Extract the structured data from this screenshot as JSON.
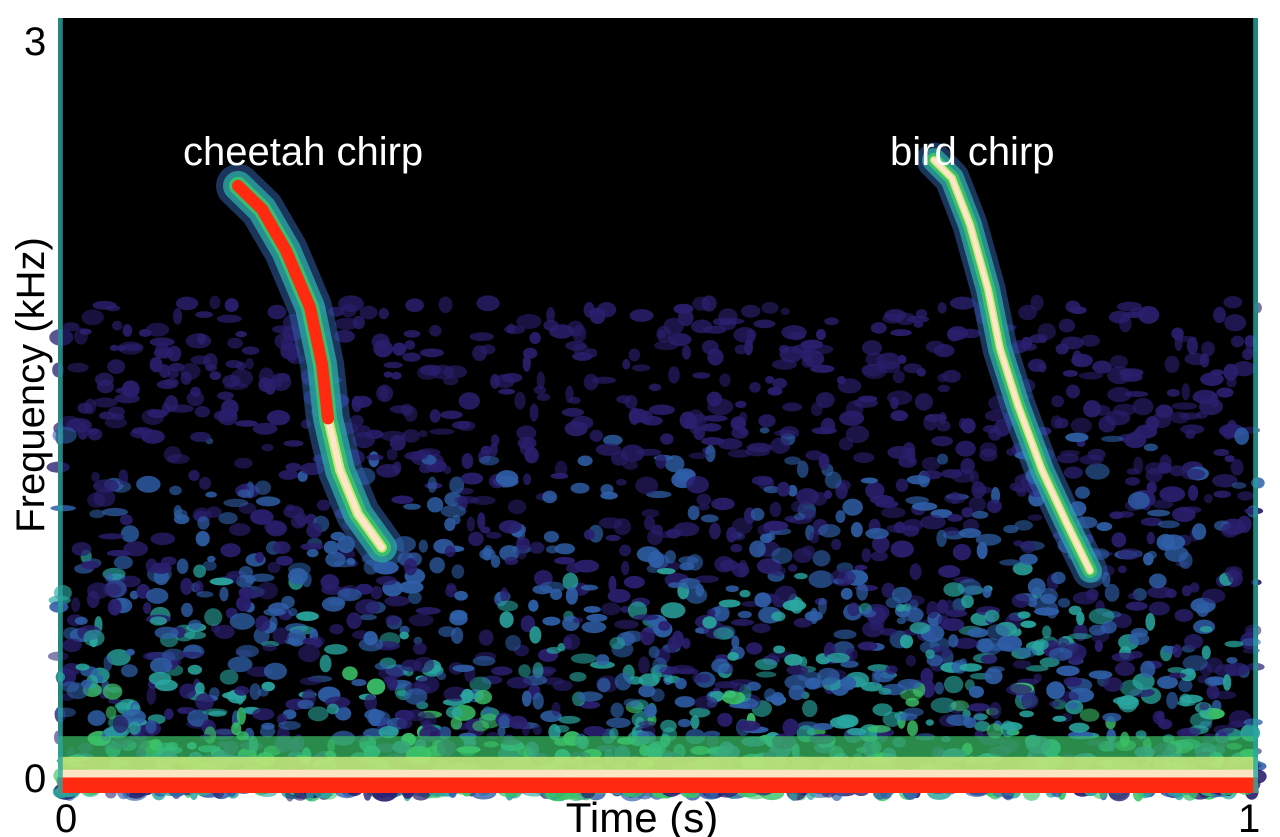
{
  "chart_data": {
    "type": "heatmap",
    "title": "",
    "xlabel": "Time (s)",
    "ylabel": "Frequency (kHz)",
    "xlim": [
      0,
      1
    ],
    "ylim": [
      0,
      3
    ],
    "x_ticks": [
      "0",
      "1"
    ],
    "y_ticks": [
      "0",
      "3"
    ],
    "grid": false,
    "colorscale": [
      "#000000",
      "#2a1f6e",
      "#2f5fa8",
      "#2aa6a0",
      "#3cc46a",
      "#c8e87a",
      "#ffe6c8",
      "#ff5a2a",
      "#ff2a10"
    ],
    "annotations": [
      {
        "text": "cheetah chirp",
        "x": 0.22,
        "y": 2.53
      },
      {
        "text": "bird chirp",
        "x": 0.78,
        "y": 2.53
      }
    ],
    "features": [
      {
        "label": "cheetah chirp",
        "path": [
          [
            0.15,
            2.35
          ],
          [
            0.17,
            2.26
          ],
          [
            0.19,
            2.1
          ],
          [
            0.21,
            1.88
          ],
          [
            0.22,
            1.66
          ],
          [
            0.225,
            1.45
          ],
          [
            0.235,
            1.25
          ],
          [
            0.25,
            1.08
          ],
          [
            0.27,
            0.95
          ]
        ],
        "intensity": 1.0
      },
      {
        "label": "bird chirp",
        "path": [
          [
            0.73,
            2.45
          ],
          [
            0.745,
            2.38
          ],
          [
            0.76,
            2.2
          ],
          [
            0.775,
            1.95
          ],
          [
            0.785,
            1.72
          ],
          [
            0.8,
            1.5
          ],
          [
            0.82,
            1.25
          ],
          [
            0.84,
            1.05
          ],
          [
            0.86,
            0.86
          ]
        ],
        "intensity": 0.8
      }
    ]
  }
}
